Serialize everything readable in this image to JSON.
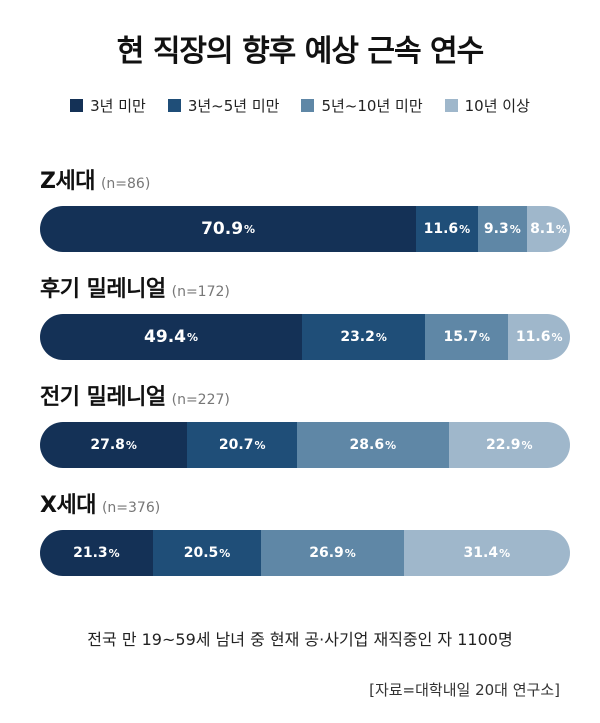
{
  "chart_data": {
    "type": "bar",
    "orientation": "horizontal",
    "stacked": true,
    "title": "현 직장의 향후 예상 근속 연수",
    "legend_position": "top",
    "unit": "%",
    "series": [
      {
        "name": "3년 미만",
        "color": "#143156"
      },
      {
        "name": "3년~5년 미만",
        "color": "#1f4e78"
      },
      {
        "name": "5년~10년 미만",
        "color": "#5f87a6"
      },
      {
        "name": "10년 이상",
        "color": "#9fb7cb"
      }
    ],
    "groups": [
      {
        "label": "Z세대",
        "n": "(n=86)",
        "values": [
          70.9,
          11.6,
          9.3,
          8.1
        ]
      },
      {
        "label": "후기 밀레니얼",
        "n": "(n=172)",
        "values": [
          49.4,
          23.2,
          15.7,
          11.6
        ]
      },
      {
        "label": "전기 밀레니얼",
        "n": "(n=227)",
        "values": [
          27.8,
          20.7,
          28.6,
          22.9
        ]
      },
      {
        "label": "X세대",
        "n": "(n=376)",
        "values": [
          21.3,
          20.5,
          26.9,
          31.4
        ]
      }
    ]
  },
  "footnote": "전국 만 19~59세 남녀 중 현재 공·사기업 재직중인 자 1100명",
  "source": "[자료=대학내일 20대 연구소]"
}
